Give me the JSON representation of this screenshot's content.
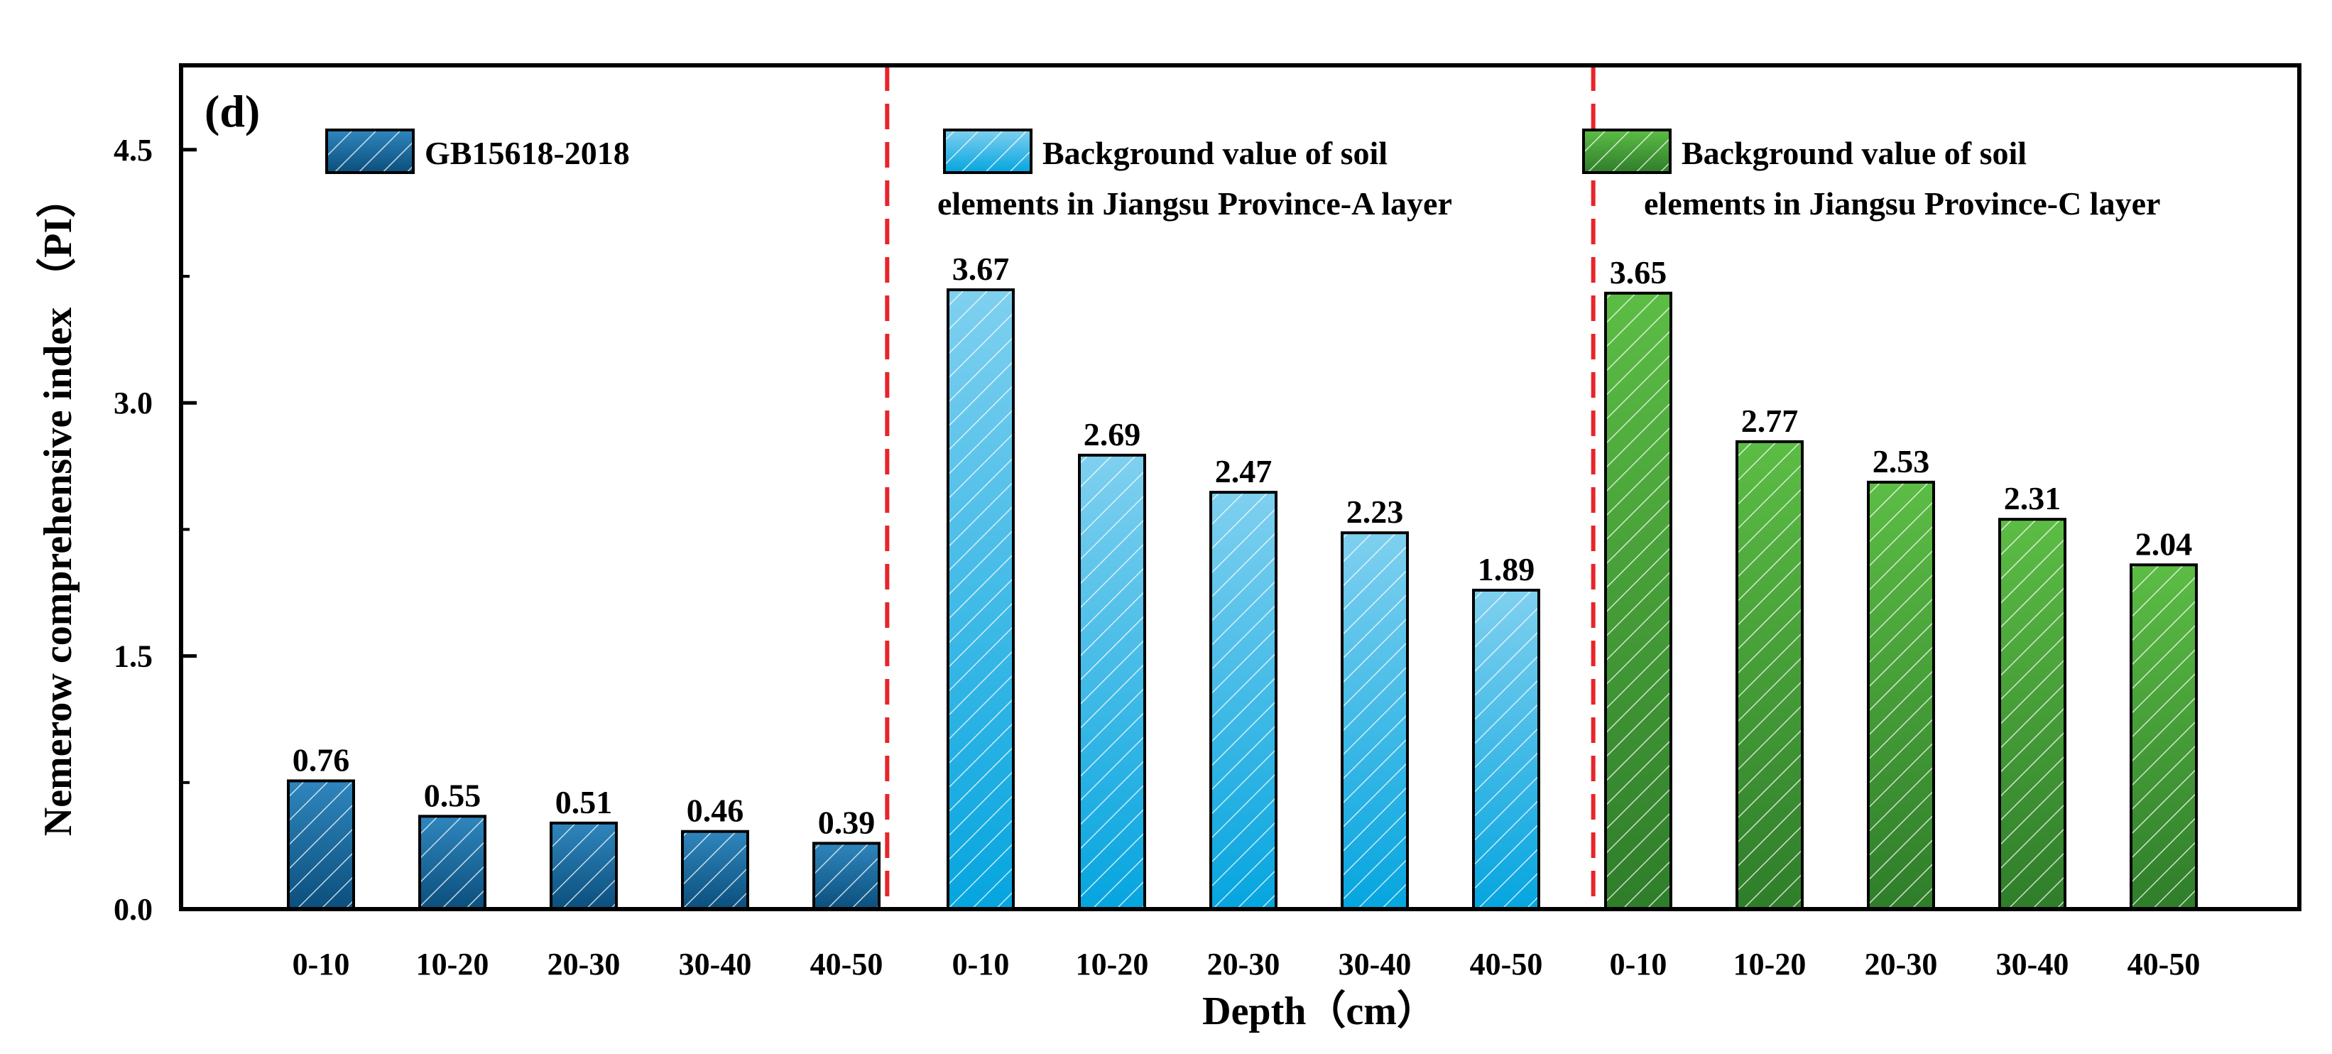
{
  "chart_data": {
    "type": "bar",
    "panel_label": "(d)",
    "xlabel": "Depth（cm）",
    "ylabel": "Nemerow comprehensive index （PI）",
    "ylim": [
      0,
      5.0
    ],
    "yticks": [
      0.0,
      1.5,
      3.0,
      4.5
    ],
    "ytick_labels": [
      "0.0",
      "1.5",
      "3.0",
      "4.5"
    ],
    "grid": false,
    "categories": [
      "0-10",
      "10-20",
      "20-30",
      "30-40",
      "40-50"
    ],
    "separators": "red dashed vertical lines between groups",
    "series": [
      {
        "name": "GB15618-2018",
        "legend_lines": [
          "GB15618-2018"
        ],
        "values": [
          0.76,
          0.55,
          0.51,
          0.46,
          0.39
        ],
        "value_labels": [
          "0.76",
          "0.55",
          "0.51",
          "0.46",
          "0.39"
        ],
        "color_top": "#2f86bd",
        "color_bottom": "#0b4f7d"
      },
      {
        "name": "Background value of soil elements in Jiangsu Province-A layer",
        "legend_lines": [
          "Background value of soil",
          "elements in Jiangsu Province-A layer"
        ],
        "values": [
          3.67,
          2.69,
          2.47,
          2.23,
          1.89
        ],
        "value_labels": [
          "3.67",
          "2.69",
          "2.47",
          "2.23",
          "1.89"
        ],
        "color_top": "#7fd0ef",
        "color_bottom": "#05a5df"
      },
      {
        "name": "Background value of soil elements in Jiangsu Province-C layer",
        "legend_lines": [
          "Background value of soil",
          "elements in Jiangsu Province-C layer"
        ],
        "values": [
          3.65,
          2.77,
          2.53,
          2.31,
          2.04
        ],
        "value_labels": [
          "3.65",
          "2.77",
          "2.53",
          "2.31",
          "2.04"
        ],
        "color_top": "#5cbd45",
        "color_bottom": "#2f7d2a"
      }
    ],
    "colors": {
      "separator": "#e8242a",
      "axis": "#000000",
      "hatch": "#ffffff"
    }
  }
}
